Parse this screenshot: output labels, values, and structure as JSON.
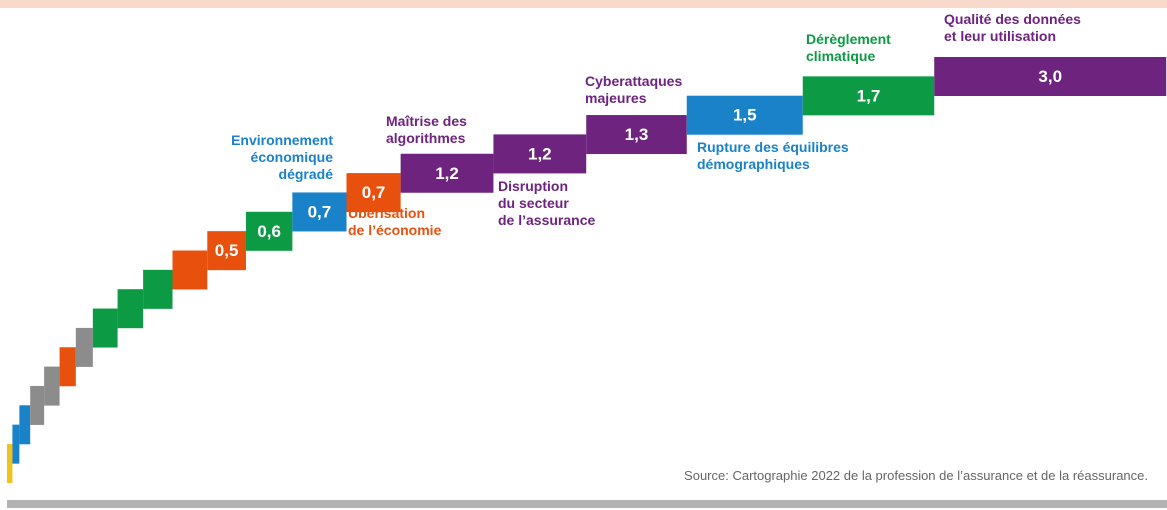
{
  "chart_data": {
    "type": "step",
    "source": "Source: Cartographie 2022 de la profession de l’assurance et de la réassurance.",
    "categories": [
      null,
      null,
      null,
      null,
      null,
      null,
      null,
      null,
      null,
      null,
      null,
      null,
      null,
      "Environnement\néconomique\ndégradé",
      "Ubérisation\nde l’économie",
      "Maîtrise des\nalgorithmes",
      "Disruption\ndu secteur\nde l’assurance",
      "Cyberattaques\nmajeures",
      "Rupture des équilibres\ndémographiques",
      "Dérèglement\nclimatique",
      "Qualité des données\net leur utilisation"
    ],
    "values": [
      0.07,
      0.09,
      0.14,
      0.18,
      0.2,
      0.21,
      0.22,
      0.32,
      0.33,
      0.38,
      0.45,
      0.5,
      0.6,
      0.7,
      0.7,
      1.2,
      1.2,
      1.3,
      1.5,
      1.7,
      3.0
    ],
    "value_labels": [
      null,
      null,
      null,
      null,
      null,
      null,
      null,
      null,
      null,
      null,
      null,
      "0,5",
      "0,6",
      "0,7",
      "0,7",
      "1,2",
      "1,2",
      "1,3",
      "1,5",
      "1,7",
      "3,0"
    ],
    "colors": [
      "#f2c21b",
      "#1a82c8",
      "#1a82c8",
      "#8c8c8c",
      "#8c8c8c",
      "#e8500e",
      "#8c8c8c",
      "#0d9a45",
      "#0d9a45",
      "#0d9a45",
      "#e8500e",
      "#e8500e",
      "#0d9a45",
      "#1a82c8",
      "#e8500e",
      "#6e237f",
      "#6e237f",
      "#6e237f",
      "#1a82c8",
      "#0d9a45",
      "#6e237f"
    ],
    "xlim": [
      0,
      15
    ]
  }
}
